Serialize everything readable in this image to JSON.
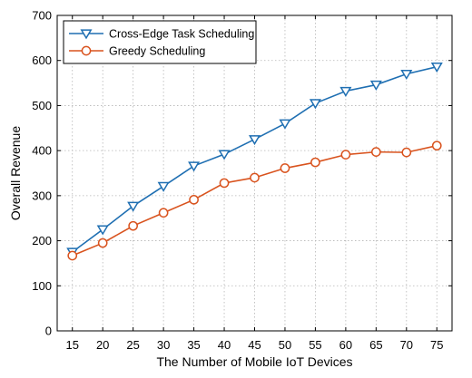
{
  "chart_data": {
    "type": "line",
    "xlabel": "The Number of Mobile IoT Devices",
    "ylabel": "Overall Revenue",
    "x": [
      15,
      20,
      25,
      30,
      35,
      40,
      45,
      50,
      55,
      60,
      65,
      70,
      75
    ],
    "xlim": [
      12.5,
      77.5
    ],
    "ylim": [
      0,
      700
    ],
    "yticks": [
      0,
      100,
      200,
      300,
      400,
      500,
      600,
      700
    ],
    "grid": true,
    "legend_position": "top-left",
    "series": [
      {
        "name": "Cross-Edge Task Scheduling",
        "color": "#1f6fb2",
        "marker": "triangle-down",
        "values": [
          175,
          225,
          277,
          321,
          366,
          392,
          425,
          460,
          505,
          532,
          546,
          570,
          586
        ]
      },
      {
        "name": "Greedy Scheduling",
        "color": "#d9531e",
        "marker": "circle",
        "values": [
          167,
          195,
          233,
          262,
          291,
          328,
          340,
          361,
          374,
          391,
          397,
          396,
          411
        ]
      }
    ]
  }
}
